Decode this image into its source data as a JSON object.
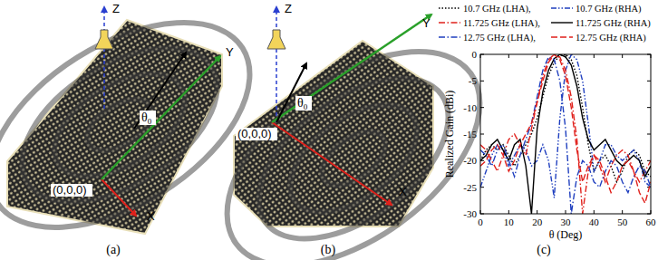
{
  "diagrams": [
    {
      "panel_label": "(a)",
      "axes": {
        "x": "X",
        "y": "Y",
        "z": "Z"
      },
      "origin": "(0,0,0)",
      "angle": {
        "symbol": "θ",
        "subscript": "0"
      }
    },
    {
      "panel_label": "(b)",
      "axes": {
        "x": "X",
        "y": "Y",
        "z": "Z"
      },
      "origin": "(0,0,0)",
      "angle": {
        "symbol": "θ",
        "subscript": "0"
      }
    }
  ],
  "chart_data": {
    "type": "line",
    "title": "(c)",
    "x_label": "θ (Deg)",
    "y_label": "Realized Gain (dBi)",
    "x": [
      0,
      2,
      4,
      6,
      8,
      10,
      12,
      14,
      16,
      18,
      20,
      22,
      24,
      26,
      28,
      30,
      32,
      34,
      36,
      38,
      40,
      42,
      44,
      46,
      48,
      50,
      52,
      54,
      56,
      58,
      60
    ],
    "xlim": [
      0,
      60
    ],
    "xticks": [
      0,
      10,
      20,
      30,
      40,
      50,
      60
    ],
    "ylim": [
      -30,
      0
    ],
    "yticks": [
      -30,
      -25,
      -20,
      -15,
      -10,
      -5,
      0
    ],
    "legend": "top",
    "series": [
      {
        "name": "10.7 GHz (LHA),",
        "color": "#000000",
        "line_style": "dotted",
        "values": [
          -20,
          -18,
          -17,
          -18,
          -17,
          -19,
          -21,
          -19,
          -17,
          -15,
          -12,
          -8,
          -4,
          -1.5,
          -0.2,
          0,
          -1,
          -4,
          -10,
          -17,
          -22,
          -20,
          -19,
          -21,
          -24,
          -22,
          -19,
          -18,
          -19,
          -22,
          -23
        ]
      },
      {
        "name": "10.7 GHz (RHA)",
        "color": "#1f3fbf",
        "line_style": "dash-dot-dot",
        "values": [
          -25,
          -22,
          -19,
          -17,
          -18,
          -21,
          -19,
          -17,
          -18,
          -21,
          -20,
          -17,
          -20,
          -27,
          -12,
          -3,
          0,
          -1,
          -5,
          -13,
          -22,
          -20,
          -17,
          -17,
          -19,
          -20,
          -19,
          -18,
          -20,
          -24,
          -25
        ]
      },
      {
        "name": "11.725 GHz (LHA),",
        "color": "#e0201b",
        "line_style": "dash-dot",
        "values": [
          -17,
          -18,
          -20,
          -22,
          -19,
          -16,
          -15,
          -17,
          -19,
          -14,
          -9,
          -4,
          -1,
          0,
          -0.5,
          -3,
          -8,
          -16,
          -30,
          -22,
          -19,
          -21,
          -24,
          -21,
          -19,
          -18,
          -19,
          -22,
          -24,
          -22,
          -20
        ]
      },
      {
        "name": "11.725 GHz (RHA)",
        "color": "#000000",
        "line_style": "solid",
        "values": [
          -20,
          -19,
          -17,
          -16,
          -18,
          -20,
          -17,
          -16,
          -21,
          -30,
          -14,
          -7,
          -3,
          -0.8,
          0,
          -0.5,
          -2,
          -6,
          -12,
          -16,
          -18,
          -17,
          -16,
          -18,
          -20,
          -21,
          -20,
          -19,
          -20,
          -23,
          -21
        ]
      },
      {
        "name": "12.75 GHz (LHA),",
        "color": "#1f3fbf",
        "line_style": "dash-dot",
        "values": [
          -18,
          -19,
          -21,
          -18,
          -17,
          -20,
          -23,
          -19,
          -16,
          -13,
          -8,
          -3,
          -0.5,
          -1,
          -5,
          -14,
          -30,
          -23,
          -20,
          -21,
          -24,
          -25,
          -22,
          -20,
          -21,
          -24,
          -26,
          -23,
          -21,
          -22,
          -25
        ]
      },
      {
        "name": "12.75 GHz (RHA)",
        "color": "#e0201b",
        "line_style": "dashed",
        "values": [
          -21,
          -20,
          -18,
          -17,
          -19,
          -22,
          -20,
          -17,
          -15,
          -13,
          -9,
          -5,
          -1.5,
          0,
          -1,
          -4,
          -10,
          -18,
          -24,
          -21,
          -19,
          -20,
          -23,
          -26,
          -24,
          -21,
          -20,
          -22,
          -26,
          -28,
          -24
        ]
      }
    ]
  }
}
